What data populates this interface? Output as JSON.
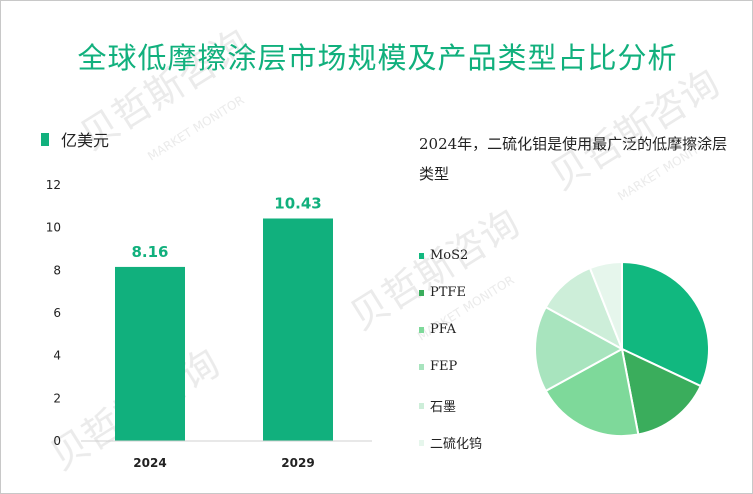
{
  "title": "全球低摩擦涂层市场规模及产品类型占比分析",
  "watermark": "贝哲斯咨询",
  "watermark_sub": "MARKET MONITOR",
  "colors": {
    "accent": "#11b07d",
    "pie": [
      "#11b87f",
      "#3aad5c",
      "#7ed99a",
      "#a8e4be",
      "#cdeed9",
      "#e6f6ec"
    ]
  },
  "chart_data": [
    {
      "type": "bar",
      "unit_label": "亿美元",
      "categories": [
        "2024",
        "2029"
      ],
      "values": [
        8.16,
        10.43
      ],
      "value_labels": [
        "8.16",
        "10.43"
      ],
      "ylim": [
        0,
        12
      ],
      "yticks": [
        "0",
        "2",
        "4",
        "6",
        "8",
        "10",
        "12"
      ],
      "grid": false
    },
    {
      "type": "pie",
      "note": "2024年，二硫化钼是使用最广泛的低摩擦涂层类型",
      "labels": [
        "MoS2",
        "PTFE",
        "PFA",
        "FEP",
        "石墨",
        "二硫化钨"
      ],
      "values": [
        32,
        15,
        20,
        16,
        11,
        6
      ]
    }
  ]
}
